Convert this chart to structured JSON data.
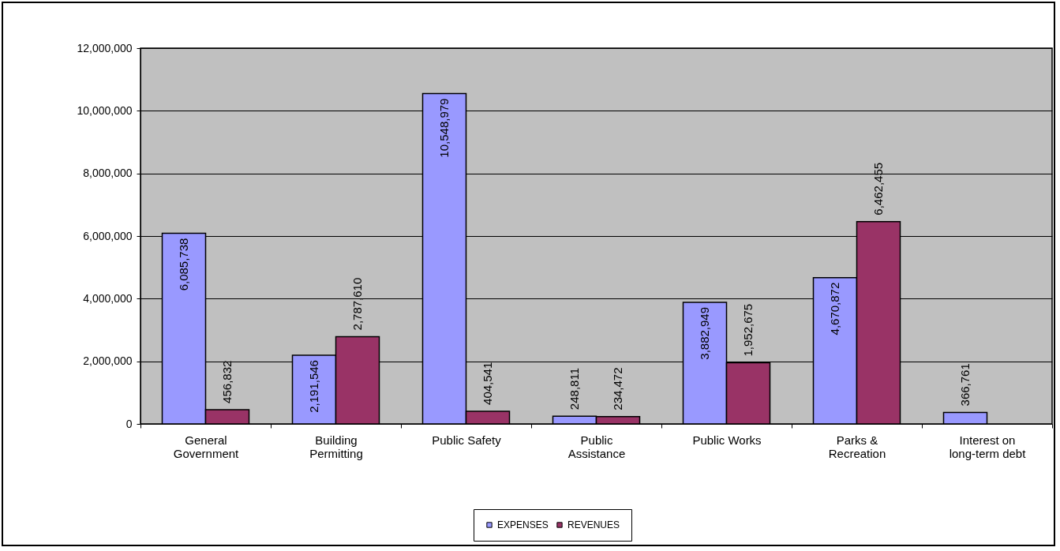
{
  "chart_data": {
    "type": "bar",
    "categories": [
      "General Government",
      "Building Permitting",
      "Public Safety",
      "Public Assistance",
      "Public Works",
      "Parks & Recreation",
      "Interest on long-term debt"
    ],
    "series": [
      {
        "name": "EXPENSES",
        "color": "#9999ff",
        "values": [
          6085738,
          2191546,
          10548979,
          248811,
          3882949,
          4670872,
          366761
        ],
        "value_labels": [
          "6,085,738",
          "2,191,546",
          "10,548,979",
          "248,811",
          "3,882,949",
          "4,670,872",
          "366,761"
        ]
      },
      {
        "name": "REVENUES",
        "color": "#993366",
        "values": [
          456832,
          2787610,
          404541,
          234472,
          1952675,
          6462455,
          null
        ],
        "value_labels": [
          "456,832",
          "2,787,610",
          "404,541",
          "234,472",
          "1,952,675",
          "6,462,455",
          null
        ]
      }
    ],
    "ylim": [
      0,
      12000000
    ],
    "yticks": [
      {
        "value": 0,
        "label": "0"
      },
      {
        "value": 2000000,
        "label": "2,000,000"
      },
      {
        "value": 4000000,
        "label": "4,000,000"
      },
      {
        "value": 6000000,
        "label": "6,000,000"
      },
      {
        "value": 8000000,
        "label": "8,000,000"
      },
      {
        "value": 10000000,
        "label": "10,000,000"
      },
      {
        "value": 12000000,
        "label": "12,000,000"
      }
    ],
    "grid": "y",
    "legend": "bottom"
  }
}
